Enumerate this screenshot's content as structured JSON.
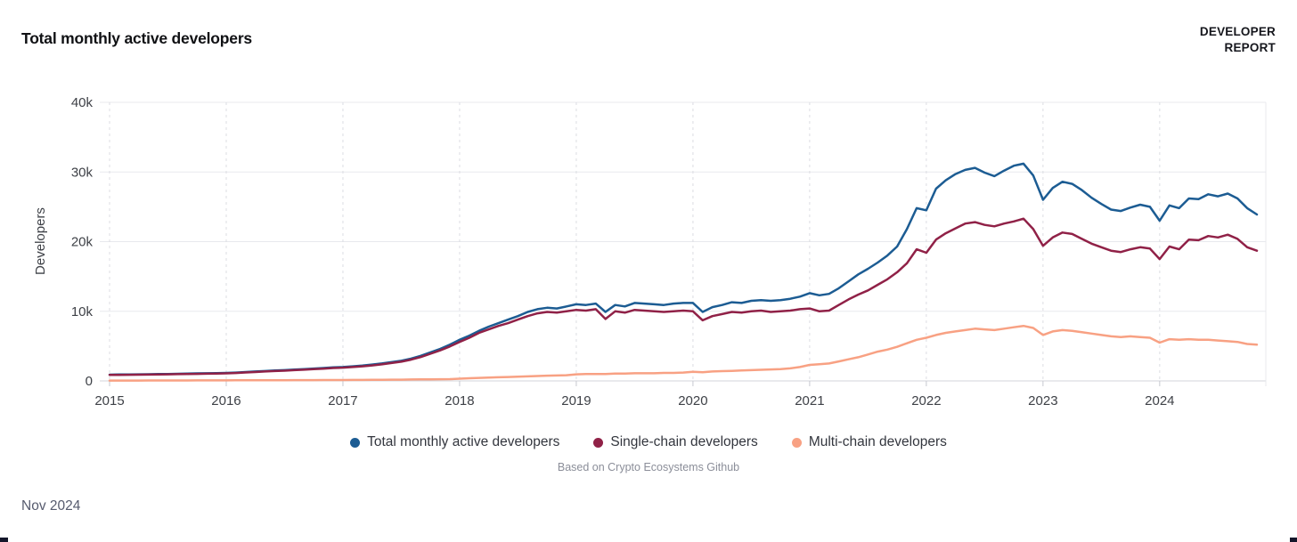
{
  "header": {
    "title": "Total monthly active developers",
    "logo_line1": "DEVELOPER",
    "logo_line2": "REPORT"
  },
  "caption": "Based on Crypto Ecosystems Github",
  "footer": {
    "date_label": "Nov 2024"
  },
  "colors": {
    "total_series": "#1c5c93",
    "single_series": "#902147",
    "multi_series": "#f8a183",
    "grid_line": "#e8e9ed",
    "zero_axis_line": "#d3d5db",
    "year_dash_line": "#dcdde3",
    "tick_mark": "#c6c8d0",
    "tick_text": "#3e4147"
  },
  "chart_data": {
    "type": "line",
    "title": "Total monthly active developers",
    "xlabel": "",
    "ylabel": "Developers",
    "ylim": [
      0,
      40000
    ],
    "grid": true,
    "legend_position": "bottom",
    "x_start": "2015-01",
    "x_end": "2024-11",
    "x_interval": "monthly",
    "yticks": [
      {
        "value": 0,
        "label": "0"
      },
      {
        "value": 10000,
        "label": "10k"
      },
      {
        "value": 20000,
        "label": "20k"
      },
      {
        "value": 30000,
        "label": "30k"
      },
      {
        "value": 40000,
        "label": "40k"
      }
    ],
    "xticks": [
      "2015",
      "2016",
      "2017",
      "2018",
      "2019",
      "2020",
      "2021",
      "2022",
      "2023",
      "2024"
    ],
    "series": [
      {
        "name": "Total monthly active developers",
        "color": "#1c5c93",
        "values": [
          900,
          920,
          930,
          950,
          960,
          980,
          1000,
          1020,
          1050,
          1080,
          1100,
          1120,
          1150,
          1200,
          1280,
          1350,
          1420,
          1500,
          1550,
          1620,
          1700,
          1780,
          1850,
          1950,
          2000,
          2100,
          2200,
          2350,
          2500,
          2700,
          2900,
          3200,
          3600,
          4100,
          4600,
          5200,
          5900,
          6500,
          7200,
          7800,
          8300,
          8800,
          9300,
          9900,
          10300,
          10500,
          10400,
          10700,
          11000,
          10900,
          11100,
          9900,
          10900,
          10700,
          11200,
          11100,
          11000,
          10900,
          11100,
          11200,
          11200,
          9900,
          10600,
          10900,
          11300,
          11200,
          11500,
          11600,
          11500,
          11600,
          11800,
          12100,
          12600,
          12300,
          12500,
          13300,
          14300,
          15300,
          16100,
          17000,
          18000,
          19300,
          21800,
          24800,
          24500,
          27600,
          28800,
          29700,
          30300,
          30600,
          29900,
          29400,
          30200,
          30900,
          31200,
          29500,
          26000,
          27700,
          28600,
          28300,
          27400,
          26300,
          25400,
          24600,
          24400,
          24900,
          25300,
          25000,
          23000,
          25200,
          24800,
          26200,
          26100,
          26800,
          26500,
          26900,
          26200,
          24800,
          23900
        ]
      },
      {
        "name": "Single-chain developers",
        "color": "#902147",
        "values": [
          850,
          870,
          880,
          900,
          910,
          930,
          950,
          970,
          990,
          1010,
          1030,
          1060,
          1090,
          1140,
          1210,
          1280,
          1350,
          1420,
          1470,
          1540,
          1610,
          1690,
          1760,
          1850,
          1900,
          2000,
          2090,
          2230,
          2380,
          2570,
          2760,
          3050,
          3420,
          3900,
          4380,
          4950,
          5600,
          6200,
          6900,
          7400,
          7900,
          8300,
          8800,
          9300,
          9700,
          9900,
          9800,
          10000,
          10200,
          10100,
          10300,
          8900,
          10000,
          9800,
          10200,
          10100,
          10000,
          9900,
          10000,
          10100,
          10000,
          8700,
          9300,
          9600,
          9900,
          9800,
          10000,
          10100,
          9900,
          10000,
          10100,
          10300,
          10400,
          10000,
          10100,
          10900,
          11700,
          12400,
          13000,
          13800,
          14600,
          15600,
          16900,
          18900,
          18400,
          20300,
          21200,
          21900,
          22600,
          22800,
          22400,
          22200,
          22600,
          22900,
          23300,
          21800,
          19400,
          20600,
          21300,
          21100,
          20400,
          19700,
          19200,
          18700,
          18500,
          18900,
          19200,
          19000,
          17500,
          19300,
          18900,
          20300,
          20200,
          20800,
          20600,
          21000,
          20400,
          19200,
          18700
        ]
      },
      {
        "name": "Multi-chain developers",
        "color": "#f8a183",
        "values": [
          50,
          50,
          55,
          55,
          60,
          60,
          65,
          65,
          70,
          75,
          75,
          80,
          80,
          85,
          90,
          95,
          100,
          105,
          105,
          110,
          115,
          120,
          125,
          130,
          130,
          140,
          145,
          155,
          165,
          175,
          185,
          200,
          215,
          230,
          240,
          260,
          320,
          380,
          430,
          480,
          520,
          560,
          600,
          650,
          700,
          750,
          780,
          820,
          950,
          980,
          1000,
          1000,
          1050,
          1050,
          1100,
          1100,
          1100,
          1150,
          1150,
          1200,
          1300,
          1250,
          1350,
          1400,
          1450,
          1500,
          1550,
          1600,
          1650,
          1700,
          1800,
          2000,
          2300,
          2400,
          2500,
          2800,
          3100,
          3400,
          3800,
          4200,
          4500,
          4900,
          5400,
          5900,
          6200,
          6600,
          6900,
          7100,
          7300,
          7500,
          7400,
          7300,
          7500,
          7700,
          7900,
          7600,
          6600,
          7100,
          7300,
          7200,
          7000,
          6800,
          6600,
          6400,
          6300,
          6400,
          6300,
          6200,
          5500,
          6000,
          5900,
          6000,
          5900,
          5900,
          5800,
          5700,
          5600,
          5300,
          5200
        ]
      }
    ]
  }
}
